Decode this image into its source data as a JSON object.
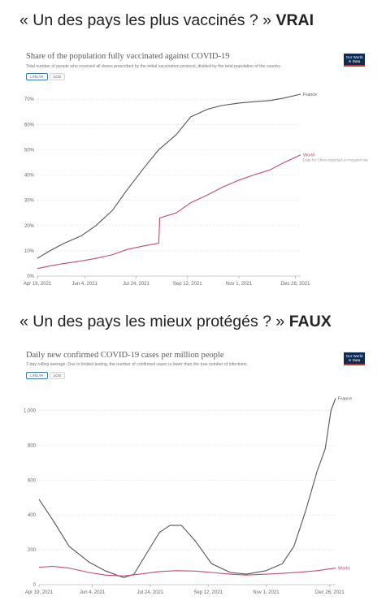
{
  "headings": [
    {
      "question": "« Un des pays les plus vaccinés ? »",
      "verdict": "VRAI"
    },
    {
      "question": "« Un des pays les mieux protégés ? »",
      "verdict": "FAUX"
    }
  ],
  "toggle": {
    "linear": "LINEAR",
    "log": "LOG"
  },
  "logo": {
    "line1": "Our World",
    "line2": "in Data"
  },
  "colors": {
    "france": "#555555",
    "world": "#c2497f",
    "grid": "#dddddd",
    "axis": "#999999"
  },
  "chart_data": [
    {
      "type": "line",
      "title": "Share of the population fully vaccinated against COVID-19",
      "subtitle": "Total number of people who received all doses prescribed by the initial vaccination protocol, divided by the total population of the country.",
      "x_tick_labels": [
        "Apr 19, 2021",
        "Jun 4, 2021",
        "Jul 24, 2021",
        "Sep 12, 2021",
        "Nov 1, 2021",
        "Dec 26, 2021"
      ],
      "x_ticks": [
        "2021-04-19",
        "2021-06-04",
        "2021-07-24",
        "2021-09-12",
        "2021-11-01",
        "2021-12-26"
      ],
      "xlim": [
        "2021-04-19",
        "2021-12-31"
      ],
      "y_tick_labels": [
        "0%",
        "10%",
        "20%",
        "30%",
        "40%",
        "50%",
        "60%",
        "70%"
      ],
      "ylim": [
        0,
        72
      ],
      "grid": true,
      "series": [
        {
          "name": "France",
          "color": "#555555",
          "x": [
            "2021-04-19",
            "2021-05-01",
            "2021-05-15",
            "2021-06-01",
            "2021-06-15",
            "2021-07-01",
            "2021-07-15",
            "2021-08-01",
            "2021-08-15",
            "2021-09-01",
            "2021-09-15",
            "2021-10-01",
            "2021-10-15",
            "2021-11-01",
            "2021-11-15",
            "2021-12-01",
            "2021-12-15",
            "2021-12-31"
          ],
          "values": [
            7,
            10,
            13,
            16,
            20,
            26,
            34,
            43,
            50,
            56,
            63,
            66,
            67.5,
            68.5,
            69,
            69.5,
            70.5,
            72
          ]
        },
        {
          "name": "World",
          "note": "Data for China reported at irregular intervals",
          "color": "#c2497f",
          "x": [
            "2021-04-19",
            "2021-05-01",
            "2021-05-15",
            "2021-06-01",
            "2021-06-15",
            "2021-07-01",
            "2021-07-15",
            "2021-08-01",
            "2021-08-15",
            "2021-08-16",
            "2021-09-01",
            "2021-09-15",
            "2021-10-01",
            "2021-10-15",
            "2021-11-01",
            "2021-11-15",
            "2021-12-01",
            "2021-12-15",
            "2021-12-31"
          ],
          "values": [
            3,
            4,
            5,
            6,
            7,
            8.5,
            10.5,
            12,
            13,
            23,
            25,
            29,
            32,
            35,
            38,
            40,
            42,
            45,
            48
          ]
        }
      ]
    },
    {
      "type": "line",
      "title": "Daily new confirmed COVID-19 cases per million people",
      "subtitle": "7-day rolling average. Due to limited testing, the number of confirmed cases is lower than the true number of infections.",
      "x_tick_labels": [
        "Apr 19, 2021",
        "Jun 4, 2021",
        "Jul 24, 2021",
        "Sep 12, 2021",
        "Nov 1, 2021",
        "Dec 26, 2021"
      ],
      "x_ticks": [
        "2021-04-19",
        "2021-06-04",
        "2021-07-24",
        "2021-09-12",
        "2021-11-01",
        "2021-12-26"
      ],
      "xlim": [
        "2021-04-19",
        "2021-12-31"
      ],
      "y_tick_labels": [
        "0",
        "200",
        "400",
        "600",
        "800",
        "1,000"
      ],
      "ylim": [
        0,
        1100
      ],
      "grid": true,
      "series": [
        {
          "name": "France",
          "color": "#555555",
          "x": [
            "2021-04-19",
            "2021-05-01",
            "2021-05-15",
            "2021-06-01",
            "2021-06-15",
            "2021-07-01",
            "2021-07-10",
            "2021-07-20",
            "2021-08-01",
            "2021-08-10",
            "2021-08-20",
            "2021-09-01",
            "2021-09-15",
            "2021-10-01",
            "2021-10-15",
            "2021-11-01",
            "2021-11-15",
            "2021-11-25",
            "2021-12-05",
            "2021-12-15",
            "2021-12-22",
            "2021-12-27",
            "2021-12-31"
          ],
          "values": [
            490,
            370,
            220,
            130,
            80,
            40,
            60,
            170,
            300,
            340,
            340,
            250,
            120,
            70,
            60,
            80,
            120,
            220,
            420,
            650,
            780,
            1000,
            1070
          ]
        },
        {
          "name": "World",
          "color": "#c2497f",
          "x": [
            "2021-04-19",
            "2021-05-01",
            "2021-05-15",
            "2021-06-01",
            "2021-06-15",
            "2021-07-01",
            "2021-07-15",
            "2021-08-01",
            "2021-08-15",
            "2021-09-01",
            "2021-09-15",
            "2021-10-01",
            "2021-10-15",
            "2021-11-01",
            "2021-11-15",
            "2021-12-01",
            "2021-12-15",
            "2021-12-31"
          ],
          "values": [
            100,
            105,
            95,
            70,
            55,
            50,
            60,
            75,
            80,
            78,
            70,
            60,
            55,
            60,
            65,
            72,
            80,
            95
          ]
        }
      ]
    }
  ]
}
